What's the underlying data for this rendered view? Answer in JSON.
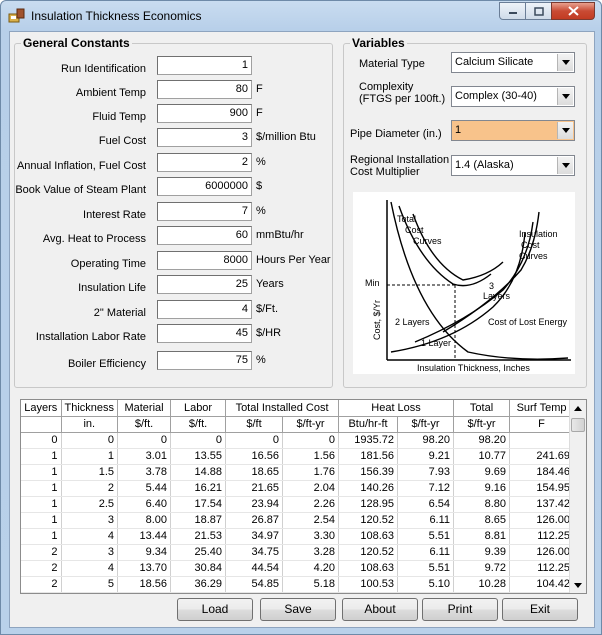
{
  "window": {
    "title": "Insulation Thickness Economics"
  },
  "constants": {
    "legend": "General Constants",
    "fields": [
      {
        "label": "Run Identification",
        "value": "1",
        "unit": ""
      },
      {
        "label": "Ambient Temp",
        "value": "80",
        "unit": "F"
      },
      {
        "label": "Fluid Temp",
        "value": "900",
        "unit": "F"
      },
      {
        "label": "Fuel Cost",
        "value": "3",
        "unit": "$/million Btu"
      },
      {
        "label": "Annual Inflation, Fuel Cost",
        "value": "2",
        "unit": "%"
      },
      {
        "label": "Book Value of Steam Plant",
        "value": "6000000",
        "unit": "$"
      },
      {
        "label": "Interest Rate",
        "value": "7",
        "unit": "%"
      },
      {
        "label": "Avg. Heat to Process",
        "value": "60",
        "unit": "mmBtu/hr"
      },
      {
        "label": "Operating Time",
        "value": "8000",
        "unit": "Hours Per Year"
      },
      {
        "label": "Insulation Life",
        "value": "25",
        "unit": "Years"
      },
      {
        "label": "2\" Material",
        "value": "4",
        "unit": "$/Ft."
      },
      {
        "label": "Installation Labor Rate",
        "value": "45",
        "unit": "$/HR"
      },
      {
        "label": "Boiler Efficiency",
        "value": "75",
        "unit": "%"
      }
    ]
  },
  "variables": {
    "legend": "Variables",
    "material_label": "Material Type",
    "material_value": "Calcium Silicate",
    "complexity_label_1": "Complexity",
    "complexity_label_2": "(FTGS per 100ft.)",
    "complexity_value": "Complex (30-40)",
    "pipe_label": "Pipe Diameter (in.)",
    "pipe_value": "1",
    "region_label_1": "Regional Installation",
    "region_label_2": "Cost Multiplier",
    "region_value": "1.4 (Alaska)",
    "highlight_color": "#f8c38b"
  },
  "diagram": {
    "total_cost": [
      "Total",
      "Cost",
      "Curves"
    ],
    "insulation_cost": [
      "Insulation",
      "Cost",
      "Curves"
    ],
    "min": "Min",
    "three_layers": [
      "3",
      "Layers"
    ],
    "two_layers": "2 Layers",
    "one_layer": "1 Layer",
    "lost_energy": "Cost of Lost Energy",
    "y_axis": "Cost, $/Yr",
    "x_axis": "Insulation Thickness, Inches"
  },
  "table": {
    "header_top": [
      "Layers",
      "Thickness",
      "Material",
      "Labor",
      "Total Installed Cost",
      "Heat Loss",
      "Total",
      "Surf Temp"
    ],
    "header_sub": [
      "",
      "in.",
      "$/ft.",
      "$/ft.",
      "$/ft",
      "$/ft-yr",
      "Btu/hr-ft",
      "$/ft-yr",
      "$/ft-yr",
      "F"
    ],
    "rows": [
      [
        "0",
        "0",
        "0",
        "0",
        "0",
        "0",
        "1935.72",
        "98.20",
        "98.20",
        ""
      ],
      [
        "1",
        "1",
        "3.01",
        "13.55",
        "16.56",
        "1.56",
        "181.56",
        "9.21",
        "10.77",
        "241.69"
      ],
      [
        "1",
        "1.5",
        "3.78",
        "14.88",
        "18.65",
        "1.76",
        "156.39",
        "7.93",
        "9.69",
        "184.46"
      ],
      [
        "1",
        "2",
        "5.44",
        "16.21",
        "21.65",
        "2.04",
        "140.26",
        "7.12",
        "9.16",
        "154.95"
      ],
      [
        "1",
        "2.5",
        "6.40",
        "17.54",
        "23.94",
        "2.26",
        "128.95",
        "6.54",
        "8.80",
        "137.42"
      ],
      [
        "1",
        "3",
        "8.00",
        "18.87",
        "26.87",
        "2.54",
        "120.52",
        "6.11",
        "8.65",
        "126.00"
      ],
      [
        "1",
        "4",
        "13.44",
        "21.53",
        "34.97",
        "3.30",
        "108.63",
        "5.51",
        "8.81",
        "112.25"
      ],
      [
        "2",
        "3",
        "9.34",
        "25.40",
        "34.75",
        "3.28",
        "120.52",
        "6.11",
        "9.39",
        "126.00"
      ],
      [
        "2",
        "4",
        "13.70",
        "30.84",
        "44.54",
        "4.20",
        "108.63",
        "5.51",
        "9.72",
        "112.25"
      ],
      [
        "2",
        "5",
        "18.56",
        "36.29",
        "54.85",
        "5.18",
        "100.53",
        "5.10",
        "10.28",
        "104.42"
      ]
    ]
  },
  "buttons": {
    "load": "Load",
    "save": "Save",
    "about": "About",
    "print": "Print",
    "exit": "Exit"
  }
}
